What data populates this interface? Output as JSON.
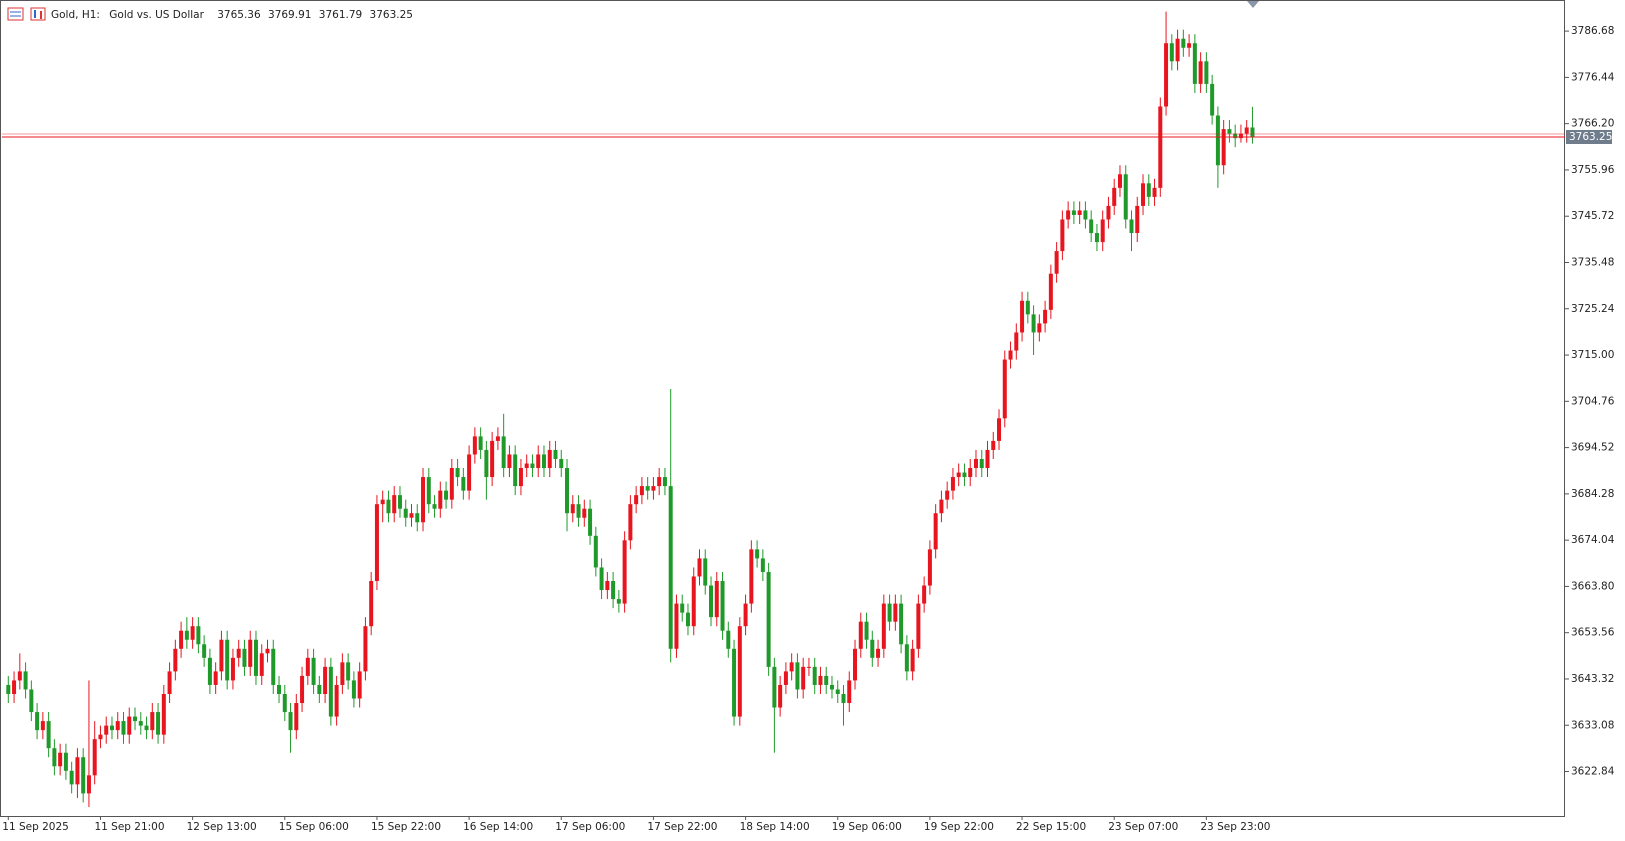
{
  "chart_data": {
    "type": "candlestick",
    "symbol": "Gold, H1:",
    "description": "Gold vs. US Dollar",
    "up_color": "#e8141e",
    "down_color": "#1f9a2a",
    "price_line_color": "#e8141e",
    "grid": false,
    "ylim": [
      3613.0,
      3792.9
    ],
    "yticks": [
      3786.68,
      3776.44,
      {
        "value": 3766.2,
        "label": "3766.20"
      },
      3755.96,
      3745.72,
      3735.48,
      3725.24,
      {
        "value": 3715,
        "label": "3715.00"
      },
      3704.76,
      3694.52,
      3684.28,
      3674.04,
      {
        "value": 3663.8,
        "label": "3663.80"
      },
      3653.56,
      3643.32,
      3633.08,
      3622.84
    ],
    "x": [
      "11 Sep 2025",
      null,
      null,
      null,
      null,
      null,
      null,
      null,
      null,
      null,
      null,
      null,
      null,
      null,
      null,
      null,
      "11 Sep 21:00",
      null,
      null,
      null,
      null,
      null,
      null,
      null,
      null,
      null,
      null,
      null,
      null,
      null,
      null,
      null,
      "12 Sep 13:00",
      null,
      null,
      null,
      null,
      null,
      null,
      null,
      null,
      null,
      null,
      null,
      null,
      null,
      null,
      null,
      "15 Sep 06:00",
      null,
      null,
      null,
      null,
      null,
      null,
      null,
      null,
      null,
      null,
      null,
      null,
      null,
      null,
      null,
      "15 Sep 22:00",
      null,
      null,
      null,
      null,
      null,
      null,
      null,
      null,
      null,
      null,
      null,
      null,
      null,
      null,
      null,
      "16 Sep 14:00",
      null,
      null,
      null,
      null,
      null,
      null,
      null,
      null,
      null,
      null,
      null,
      null,
      null,
      null,
      null,
      "17 Sep 06:00",
      null,
      null,
      null,
      null,
      null,
      null,
      null,
      null,
      null,
      null,
      null,
      null,
      null,
      null,
      null,
      "17 Sep 22:00",
      null,
      null,
      null,
      null,
      null,
      null,
      null,
      null,
      null,
      null,
      null,
      null,
      null,
      null,
      null,
      "18 Sep 14:00",
      null,
      null,
      null,
      null,
      null,
      null,
      null,
      null,
      null,
      null,
      null,
      null,
      null,
      null,
      null,
      "19 Sep 06:00",
      null,
      null,
      null,
      null,
      null,
      null,
      null,
      null,
      null,
      null,
      null,
      null,
      null,
      null,
      null,
      "19 Sep 22:00",
      null,
      null,
      null,
      null,
      null,
      null,
      null,
      null,
      null,
      null,
      null,
      null,
      null,
      null,
      null,
      "22 Sep 15:00",
      null,
      null,
      null,
      null,
      null,
      null,
      null,
      null,
      null,
      null,
      null,
      null,
      null,
      null,
      null,
      "23 Sep 07:00",
      null,
      null,
      null,
      null,
      null,
      null,
      null,
      null,
      null,
      null,
      null,
      null,
      null,
      null,
      null,
      "23 Sep 23:00",
      null,
      null,
      null,
      null,
      null,
      null,
      null,
      null
    ],
    "open": [
      3642,
      3640,
      3643,
      3645,
      3641,
      3636,
      3632,
      3634,
      3628,
      3624,
      3627,
      3623,
      3620,
      3626,
      3618,
      3622,
      3630,
      3631,
      3633,
      3632,
      3634,
      3631,
      3635,
      3634,
      3633,
      3632,
      3636,
      3631,
      3640,
      3645,
      3650,
      3654,
      3652,
      3655,
      3651,
      3648,
      3642,
      3645,
      3652,
      3643,
      3648,
      3650,
      3646,
      3652,
      3644,
      3649,
      3650,
      3642,
      3640,
      3636,
      3632,
      3638,
      3644,
      3648,
      3642,
      3640,
      3646,
      3635,
      3642,
      3647,
      3643,
      3639,
      3645,
      3655,
      3665,
      3682,
      3683,
      3680,
      3684,
      3681,
      3679,
      3680,
      3678,
      3688,
      3682,
      3681,
      3685,
      3683,
      3690,
      3688,
      3685,
      3693,
      3697,
      3694,
      3688,
      3696,
      3697,
      3690,
      3693,
      3686,
      3690,
      3691,
      3690,
      3693,
      3690,
      3694,
      3692,
      3690,
      3680,
      3682,
      3679,
      3681,
      3675,
      3668,
      3663,
      3665,
      3661,
      3660,
      3674,
      3682,
      3684,
      3686,
      3685,
      3686,
      3688,
      3686,
      3650,
      3660,
      3658,
      3655,
      3666,
      3670,
      3664,
      3657,
      3665,
      3654,
      3650,
      3635,
      3655,
      3660,
      3672,
      3670,
      3667,
      3646,
      3637,
      3642,
      3645,
      3647,
      3641,
      3646,
      3646,
      3642,
      3644,
      3642,
      3641,
      3640,
      3638,
      3643,
      3650,
      3656,
      3652,
      3648,
      3650,
      3660,
      3656,
      3660,
      3651,
      3645,
      3650,
      3660,
      3664,
      3672,
      3680,
      3683,
      3685,
      3688,
      3689,
      3688,
      3690,
      3692,
      3690,
      3694,
      3696,
      3701,
      3714,
      3716,
      3720,
      3727,
      3724,
      3720,
      3722,
      3725,
      3733,
      3738,
      3745,
      3747,
      3746,
      3747,
      3745,
      3742,
      3740,
      3745,
      3748,
      3752,
      3755,
      3745,
      3742,
      3748,
      3753,
      3750,
      3752,
      3770,
      3784,
      3780,
      3785,
      3783,
      3784,
      3775,
      3780,
      3775,
      3768,
      3757,
      3765,
      3764,
      3763,
      3764,
      3765.36
    ],
    "high": [
      3644,
      3645,
      3649,
      3647,
      3643,
      3638,
      3636,
      3636,
      3630,
      3629,
      3629,
      3625,
      3628,
      3628,
      3643,
      3634,
      3633,
      3635,
      3635,
      3636,
      3636,
      3637,
      3637,
      3636,
      3635,
      3638,
      3638,
      3642,
      3647,
      3652,
      3656,
      3657,
      3657,
      3657,
      3653,
      3650,
      3647,
      3654,
      3654,
      3650,
      3652,
      3652,
      3654,
      3654,
      3651,
      3652,
      3652,
      3644,
      3642,
      3638,
      3640,
      3646,
      3650,
      3650,
      3644,
      3648,
      3648,
      3644,
      3649,
      3649,
      3645,
      3647,
      3657,
      3667,
      3684,
      3685,
      3685,
      3686,
      3686,
      3683,
      3682,
      3682,
      3690,
      3690,
      3684,
      3687,
      3687,
      3692,
      3692,
      3690,
      3695,
      3699,
      3699,
      3696,
      3698,
      3699,
      3702,
      3695,
      3695,
      3692,
      3693,
      3693,
      3695,
      3695,
      3696,
      3696,
      3694,
      3692,
      3684,
      3684,
      3683,
      3683,
      3677,
      3670,
      3667,
      3667,
      3663,
      3676,
      3684,
      3686,
      3688,
      3688,
      3688,
      3690,
      3690,
      3707.5,
      3662,
      3662,
      3660,
      3668,
      3672,
      3672,
      3666,
      3667,
      3667,
      3656,
      3652,
      3657,
      3662,
      3674,
      3674,
      3672,
      3669,
      3648,
      3644,
      3647,
      3649,
      3649,
      3648,
      3648,
      3648,
      3646,
      3646,
      3644,
      3643,
      3642,
      3645,
      3652,
      3658,
      3658,
      3654,
      3652,
      3662,
      3662,
      3662,
      3662,
      3653,
      3652,
      3662,
      3666,
      3674,
      3682,
      3685,
      3687,
      3690,
      3691,
      3691,
      3692,
      3694,
      3694,
      3696,
      3698,
      3703,
      3716,
      3718,
      3722,
      3729,
      3729,
      3726,
      3724,
      3727,
      3735,
      3740,
      3747,
      3749,
      3749,
      3749,
      3749,
      3747,
      3744,
      3747,
      3750,
      3754,
      3757,
      3757,
      3747,
      3750,
      3755,
      3755,
      3754,
      3772,
      3791,
      3786,
      3787,
      3787,
      3786,
      3786,
      3782,
      3782,
      3777,
      3770,
      3767,
      3767,
      3766,
      3766,
      3767,
      3769.91
    ],
    "low": [
      3638,
      3638,
      3641,
      3639,
      3634,
      3630,
      3630,
      3626,
      3622,
      3622,
      3621,
      3618,
      3617,
      3616,
      3615,
      3620,
      3628,
      3629,
      3630,
      3630,
      3629,
      3629,
      3632,
      3631,
      3630,
      3630,
      3629,
      3629,
      3638,
      3643,
      3648,
      3650,
      3650,
      3649,
      3646,
      3640,
      3640,
      3643,
      3641,
      3641,
      3646,
      3644,
      3644,
      3642,
      3642,
      3647,
      3640,
      3638,
      3634,
      3627,
      3630,
      3636,
      3642,
      3640,
      3638,
      3638,
      3633,
      3633,
      3640,
      3641,
      3637,
      3637,
      3643,
      3653,
      3663,
      3678,
      3678,
      3678,
      3679,
      3677,
      3677,
      3676,
      3676,
      3680,
      3679,
      3679,
      3681,
      3681,
      3686,
      3683,
      3683,
      3691,
      3692,
      3683,
      3686,
      3694,
      3688,
      3688,
      3684,
      3684,
      3688,
      3688,
      3688,
      3688,
      3688,
      3690,
      3688,
      3676,
      3678,
      3677,
      3677,
      3673,
      3666,
      3661,
      3661,
      3659,
      3658,
      3658,
      3672,
      3680,
      3682,
      3683,
      3683,
      3684,
      3684,
      3647,
      3648,
      3656,
      3653,
      3653,
      3664,
      3662,
      3655,
      3655,
      3652,
      3648,
      3633,
      3633,
      3653,
      3658,
      3668,
      3665,
      3644,
      3627,
      3635,
      3640,
      3643,
      3639,
      3639,
      3644,
      3640,
      3640,
      3640,
      3639,
      3638,
      3633,
      3636,
      3641,
      3648,
      3650,
      3646,
      3646,
      3648,
      3654,
      3654,
      3649,
      3643,
      3643,
      3648,
      3658,
      3662,
      3670,
      3678,
      3681,
      3683,
      3686,
      3686,
      3686,
      3688,
      3688,
      3688,
      3692,
      3694,
      3699,
      3712,
      3714,
      3718,
      3722,
      3715,
      3718,
      3720,
      3723,
      3731,
      3736,
      3743,
      3744,
      3744,
      3743,
      3740,
      3738,
      3738,
      3743,
      3746,
      3750,
      3743,
      3738,
      3740,
      3746,
      3748,
      3748,
      3750,
      3768,
      3778,
      3778,
      3781,
      3781,
      3773,
      3773,
      3773,
      3766,
      3752,
      3755,
      3762,
      3761,
      3762,
      3762,
      3761.79
    ],
    "close": [
      3640,
      3643,
      3645,
      3641,
      3636,
      3632,
      3634,
      3628,
      3624,
      3627,
      3623,
      3620,
      3626,
      3618,
      3622,
      3630,
      3631,
      3633,
      3632,
      3634,
      3631,
      3635,
      3634,
      3633,
      3632,
      3636,
      3631,
      3640,
      3645,
      3650,
      3654,
      3652,
      3655,
      3651,
      3648,
      3642,
      3645,
      3652,
      3643,
      3648,
      3650,
      3646,
      3652,
      3644,
      3649,
      3650,
      3642,
      3640,
      3636,
      3632,
      3638,
      3644,
      3648,
      3642,
      3640,
      3646,
      3635,
      3642,
      3647,
      3643,
      3639,
      3645,
      3655,
      3665,
      3682,
      3683,
      3680,
      3684,
      3681,
      3679,
      3680,
      3678,
      3688,
      3682,
      3681,
      3685,
      3683,
      3690,
      3688,
      3685,
      3693,
      3697,
      3694,
      3688,
      3696,
      3697,
      3690,
      3693,
      3686,
      3690,
      3691,
      3690,
      3693,
      3690,
      3694,
      3692,
      3690,
      3680,
      3682,
      3679,
      3681,
      3675,
      3668,
      3663,
      3665,
      3661,
      3660,
      3674,
      3682,
      3684,
      3686,
      3685,
      3686,
      3688,
      3686,
      3650,
      3660,
      3658,
      3655,
      3666,
      3670,
      3664,
      3657,
      3665,
      3654,
      3650,
      3635,
      3655,
      3660,
      3672,
      3670,
      3667,
      3646,
      3637,
      3642,
      3645,
      3647,
      3641,
      3646,
      3646,
      3642,
      3644,
      3642,
      3641,
      3640,
      3638,
      3643,
      3650,
      3656,
      3652,
      3648,
      3650,
      3660,
      3656,
      3660,
      3651,
      3645,
      3650,
      3660,
      3664,
      3672,
      3680,
      3683,
      3685,
      3688,
      3689,
      3688,
      3690,
      3692,
      3690,
      3694,
      3696,
      3701,
      3714,
      3716,
      3720,
      3727,
      3724,
      3720,
      3722,
      3725,
      3733,
      3738,
      3745,
      3747,
      3746,
      3747,
      3745,
      3742,
      3740,
      3745,
      3748,
      3752,
      3755,
      3745,
      3742,
      3748,
      3753,
      3750,
      3752,
      3770,
      3784,
      3780,
      3785,
      3783,
      3784,
      3775,
      3780,
      3775,
      3768,
      3757,
      3765,
      3764,
      3763,
      3764,
      3765.36,
      3763.25
    ]
  }
}
